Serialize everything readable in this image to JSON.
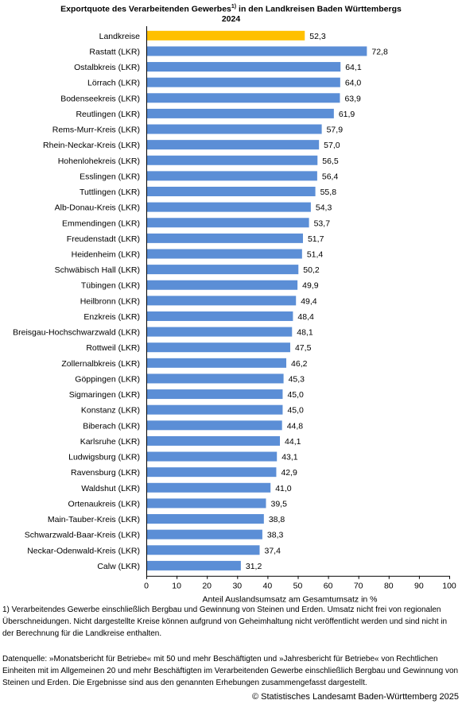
{
  "chart_data": {
    "type": "bar",
    "orientation": "horizontal",
    "title_line1": "Exportquote des Verarbeitenden Gewerbes",
    "title_sup": "1)",
    "title_line1_suffix": " in den Landkreisen Baden Württembergs",
    "title_line2": "2024",
    "xlabel": "Anteil Auslandsumsatz am Gesamtumsatz in  %",
    "xlim": [
      0,
      100
    ],
    "xticks": [
      0,
      10,
      20,
      30,
      40,
      50,
      60,
      70,
      80,
      90,
      100
    ],
    "colors": {
      "highlight": "#ffc000",
      "default": "#5b8ed6"
    },
    "categories": [
      "Landkreise",
      "Rastatt (LKR)",
      "Ostalbkreis (LKR)",
      "Lörrach (LKR)",
      "Bodenseekreis (LKR)",
      "Reutlingen (LKR)",
      "Rems-Murr-Kreis (LKR)",
      "Rhein-Neckar-Kreis (LKR)",
      "Hohenlohekreis (LKR)",
      "Esslingen (LKR)",
      "Tuttlingen (LKR)",
      "Alb-Donau-Kreis (LKR)",
      "Emmendingen (LKR)",
      "Freudenstadt (LKR)",
      "Heidenheim (LKR)",
      "Schwäbisch Hall (LKR)",
      "Tübingen (LKR)",
      "Heilbronn (LKR)",
      "Enzkreis (LKR)",
      "Breisgau-Hochschwarzwald (LKR)",
      "Rottweil (LKR)",
      "Zollernalbkreis (LKR)",
      "Göppingen (LKR)",
      "Sigmaringen (LKR)",
      "Konstanz (LKR)",
      "Biberach (LKR)",
      "Karlsruhe (LKR)",
      "Ludwigsburg (LKR)",
      "Ravensburg (LKR)",
      "Waldshut (LKR)",
      "Ortenaukreis (LKR)",
      "Main-Tauber-Kreis (LKR)",
      "Schwarzwald-Baar-Kreis (LKR)",
      "Neckar-Odenwald-Kreis (LKR)",
      "Calw (LKR)"
    ],
    "values": [
      52.3,
      72.8,
      64.1,
      64.0,
      63.9,
      61.9,
      57.9,
      57.0,
      56.5,
      56.4,
      55.8,
      54.3,
      53.7,
      51.7,
      51.4,
      50.2,
      49.9,
      49.4,
      48.4,
      48.1,
      47.5,
      46.2,
      45.3,
      45.0,
      45.0,
      44.8,
      44.1,
      43.1,
      42.9,
      41.0,
      39.5,
      38.8,
      38.3,
      37.4,
      31.2
    ],
    "value_labels": [
      "52,3",
      "72,8",
      "64,1",
      "64,0",
      "63,9",
      "61,9",
      "57,9",
      "57,0",
      "56,5",
      "56,4",
      "55,8",
      "54,3",
      "53,7",
      "51,7",
      "51,4",
      "50,2",
      "49,9",
      "49,4",
      "48,4",
      "48,1",
      "47,5",
      "46,2",
      "45,3",
      "45,0",
      "45,0",
      "44,8",
      "44,1",
      "43,1",
      "42,9",
      "41,0",
      "39,5",
      "38,8",
      "38,3",
      "37,4",
      "31,2"
    ],
    "highlight_index": 0
  },
  "footnote1": "1)  Verarbeitendes Gewerbe einschließlich Bergbau und Gewinnung von Steinen und Erden. Umsatz nicht frei von regionalen Überschneidungen. Nicht dargestellte Kreise können aufgrund von Geheimhaltung nicht veröffentlicht werden und sind nicht in der Berechnung für die Landkreise enthalten.",
  "footnote2": "Datenquelle:  »Monatsbericht für Betriebe« mit 50 und mehr Beschäftigten und »Jahresbericht für Betriebe« von Rechtlichen Einheiten mit im Allgemeinen 20 und mehr Beschäftigten im Verarbeitenden Gewerbe einschließlich Bergbau und Gewinnung von Steinen und Erden. Die Ergebnisse sind aus den genannten Erhebungen zusammengefasst dargestellt.",
  "copyright": "© Statistisches Landesamt Baden-Württemberg 2025"
}
